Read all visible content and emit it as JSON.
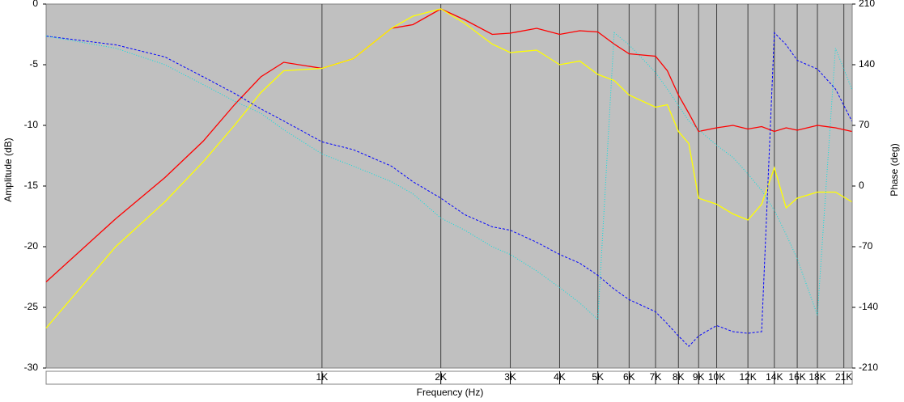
{
  "chart_data": {
    "type": "line",
    "x_label": "Frequency (Hz)",
    "y_label": "Amplitude (dB)",
    "y2_label": "Phase (deg)",
    "xscale": "log",
    "xlim": [
      200,
      22050
    ],
    "xticks": [
      {
        "value": 1000,
        "label": "1K"
      },
      {
        "value": 2000,
        "label": "2K"
      },
      {
        "value": 3000,
        "label": "3K"
      },
      {
        "value": 4000,
        "label": "4K"
      },
      {
        "value": 5000,
        "label": "5K"
      },
      {
        "value": 6000,
        "label": "6K"
      },
      {
        "value": 7000,
        "label": "7K"
      },
      {
        "value": 8000,
        "label": "8K"
      },
      {
        "value": 9000,
        "label": "9K"
      },
      {
        "value": 10000,
        "label": "10K"
      },
      {
        "value": 12000,
        "label": "12K"
      },
      {
        "value": 14000,
        "label": "14K"
      },
      {
        "value": 16000,
        "label": "16K"
      },
      {
        "value": 18000,
        "label": "18K"
      },
      {
        "value": 21000,
        "label": "21K"
      }
    ],
    "ylim": [
      -30,
      0
    ],
    "yticks": [
      -30,
      -25,
      -20,
      -15,
      -10,
      -5,
      0
    ],
    "y2lim": [
      -210,
      210
    ],
    "y2ticks": [
      -210,
      -140,
      -70,
      0,
      70,
      140,
      210
    ],
    "grid": true,
    "background": "#c0c0c0",
    "x": [
      200,
      300,
      400,
      500,
      600,
      700,
      800,
      1000,
      1200,
      1500,
      1700,
      2000,
      2300,
      2700,
      3000,
      3500,
      4000,
      4500,
      5000,
      5500,
      6000,
      7000,
      7500,
      8000,
      8500,
      9000,
      10000,
      11000,
      12000,
      13000,
      14000,
      15000,
      16000,
      18000,
      20000,
      22000
    ],
    "series": [
      {
        "color": "#ff0000",
        "dash": "none",
        "axis": "y",
        "values": [
          -22.9,
          -17.7,
          -14.3,
          -11.3,
          -8.3,
          -6,
          -4.8,
          -5.3,
          -4.5,
          -2,
          -1.7,
          -0.4,
          -1.3,
          -2.5,
          -2.4,
          -2,
          -2.5,
          -2.2,
          -2.3,
          -3.3,
          -4.1,
          -4.3,
          -5.5,
          -7.5,
          -9,
          -10.5,
          -10.2,
          -10,
          -10.3,
          -10.1,
          -10.5,
          -10.2,
          -10.4,
          -10,
          -10.2,
          -10.5
        ]
      },
      {
        "color": "#ffff00",
        "dash": "none",
        "axis": "y",
        "values": [
          -26.7,
          -20,
          -16.3,
          -13,
          -10,
          -7.3,
          -5.5,
          -5.3,
          -4.5,
          -2,
          -1,
          -0.4,
          -1.6,
          -3.3,
          -4,
          -3.8,
          -5,
          -4.7,
          -5.8,
          -6.3,
          -7.5,
          -8.5,
          -8.3,
          -10.5,
          -11.5,
          -16,
          -16.5,
          -17.3,
          -17.8,
          -16.5,
          -13.5,
          -16.8,
          -16,
          -15.5,
          -15.5,
          -16.3
        ]
      },
      {
        "color": "#0000ff",
        "dash": "3,2",
        "axis": "y2",
        "values": [
          173,
          163,
          149,
          126,
          107,
          89,
          75,
          51,
          42,
          23,
          5,
          -14,
          -33,
          -47,
          -51,
          -65,
          -79,
          -89,
          -103,
          -119,
          -131,
          -145,
          -159,
          -173,
          -185,
          -173,
          -161,
          -168,
          -170,
          -168,
          177,
          163,
          145,
          135,
          112,
          75
        ]
      },
      {
        "color": "#00e0e0",
        "dash": "1,2",
        "axis": "y2",
        "values": [
          173,
          159,
          140,
          117,
          98,
          84,
          65,
          37,
          23,
          5,
          -9,
          -37,
          -51,
          -70,
          -79,
          -98,
          -117,
          -135,
          -154,
          177,
          163,
          131,
          112,
          93,
          75,
          65,
          47,
          33,
          14,
          -5,
          -28,
          -56,
          -84,
          -149,
          159,
          112
        ]
      }
    ]
  }
}
